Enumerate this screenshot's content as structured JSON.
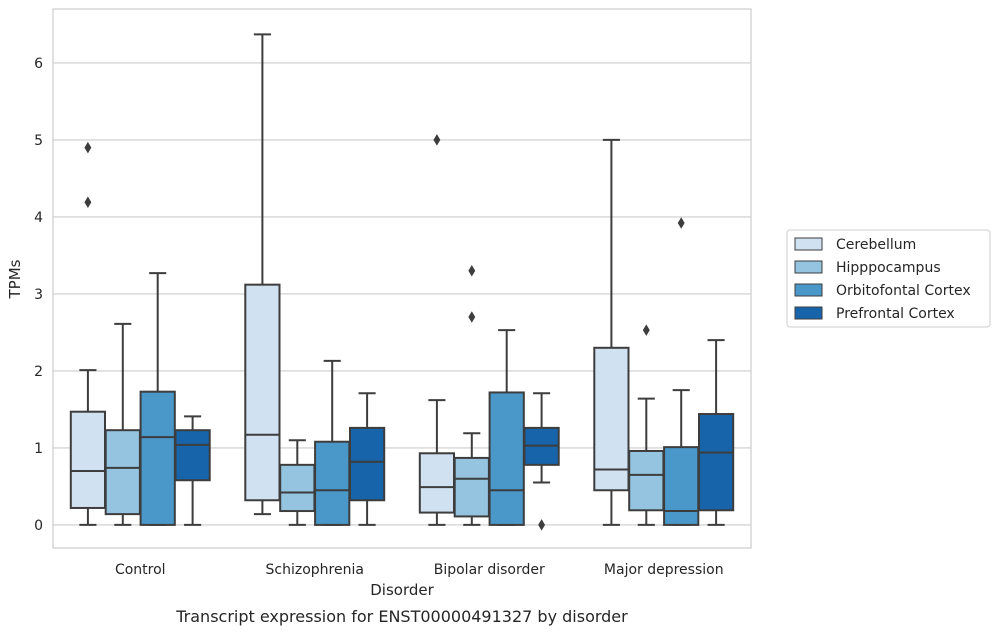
{
  "chart_data": {
    "type": "box",
    "xlabel": "Disorder",
    "ylabel": "TPMs",
    "caption": "Transcript expression for ENST00000491327 by disorder",
    "ylim": [
      -0.3,
      6.7
    ],
    "yticks": [
      "0",
      "1",
      "2",
      "3",
      "4",
      "5",
      "6"
    ],
    "grid": true,
    "legend_position": "right",
    "categories": [
      "Control",
      "Schizophrenia",
      "Bipolar disorder",
      "Major depression"
    ],
    "series": [
      {
        "name": "Cerebellum",
        "color": "#d0e1f2",
        "boxes": [
          {
            "whislo": 0.0,
            "q1": 0.22,
            "med": 0.7,
            "q3": 1.47,
            "whishi": 2.01,
            "fliers": [
              4.19,
              4.9
            ]
          },
          {
            "whislo": 0.14,
            "q1": 0.32,
            "med": 1.17,
            "q3": 3.12,
            "whishi": 6.37,
            "fliers": []
          },
          {
            "whislo": 0.0,
            "q1": 0.16,
            "med": 0.49,
            "q3": 0.93,
            "whishi": 1.62,
            "fliers": [
              5.0
            ]
          },
          {
            "whislo": 0.0,
            "q1": 0.45,
            "med": 0.72,
            "q3": 2.3,
            "whishi": 5.0,
            "fliers": []
          }
        ]
      },
      {
        "name": "Hipppocampus",
        "color": "#94c4df",
        "boxes": [
          {
            "whislo": 0.0,
            "q1": 0.14,
            "med": 0.74,
            "q3": 1.23,
            "whishi": 2.61,
            "fliers": []
          },
          {
            "whislo": 0.0,
            "q1": 0.18,
            "med": 0.42,
            "q3": 0.78,
            "whishi": 1.1,
            "fliers": []
          },
          {
            "whislo": 0.0,
            "q1": 0.11,
            "med": 0.6,
            "q3": 0.87,
            "whishi": 1.19,
            "fliers": [
              2.7,
              3.3
            ]
          },
          {
            "whislo": 0.0,
            "q1": 0.19,
            "med": 0.65,
            "q3": 0.96,
            "whishi": 1.64,
            "fliers": [
              2.53
            ]
          }
        ]
      },
      {
        "name": "Orbitofontal Cortex",
        "color": "#4a98c9",
        "boxes": [
          {
            "whislo": 0.0,
            "q1": 0.0,
            "med": 1.14,
            "q3": 1.73,
            "whishi": 3.27,
            "fliers": []
          },
          {
            "whislo": 0.0,
            "q1": 0.0,
            "med": 0.45,
            "q3": 1.08,
            "whishi": 2.13,
            "fliers": []
          },
          {
            "whislo": 0.0,
            "q1": 0.0,
            "med": 0.45,
            "q3": 1.72,
            "whishi": 2.53,
            "fliers": []
          },
          {
            "whislo": 0.0,
            "q1": 0.0,
            "med": 0.18,
            "q3": 1.01,
            "whishi": 1.75,
            "fliers": [
              3.92
            ]
          }
        ]
      },
      {
        "name": "Prefrontal Cortex",
        "color": "#1764ab",
        "boxes": [
          {
            "whislo": 0.0,
            "q1": 0.58,
            "med": 1.04,
            "q3": 1.23,
            "whishi": 1.41,
            "fliers": []
          },
          {
            "whislo": 0.0,
            "q1": 0.32,
            "med": 0.82,
            "q3": 1.26,
            "whishi": 1.71,
            "fliers": []
          },
          {
            "whislo": 0.55,
            "q1": 0.78,
            "med": 1.03,
            "q3": 1.26,
            "whishi": 1.71,
            "fliers": [
              0.0
            ]
          },
          {
            "whislo": 0.0,
            "q1": 0.19,
            "med": 0.94,
            "q3": 1.44,
            "whishi": 2.4,
            "fliers": []
          }
        ]
      }
    ]
  }
}
